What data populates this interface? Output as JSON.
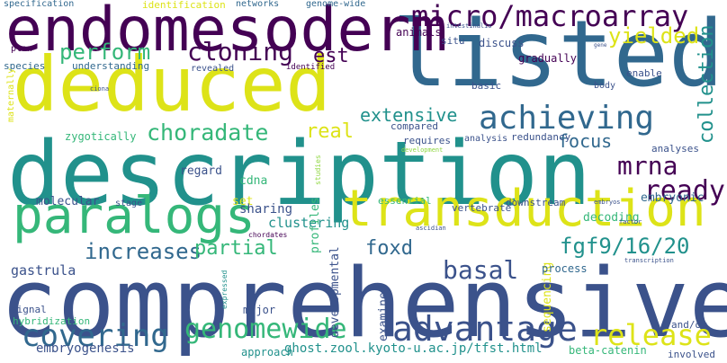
{
  "palette": {
    "dark_purple": "#440154",
    "indigo": "#3b528b",
    "blue": "#31688e",
    "teal": "#21918c",
    "green": "#35b779",
    "lime": "#90d743",
    "yellow": "#dde318"
  },
  "words": [
    {
      "text": "comprehensive",
      "color": "#3b528b"
    },
    {
      "text": "description",
      "color": "#21918c"
    },
    {
      "text": "listed",
      "color": "#31688e"
    },
    {
      "text": "deduced",
      "color": "#dde318"
    },
    {
      "text": "endomesoderm",
      "color": "#440154"
    },
    {
      "text": "transduction",
      "color": "#dde318"
    },
    {
      "text": "paralogs",
      "color": "#35b779"
    },
    {
      "text": "achieving",
      "color": "#31688e"
    },
    {
      "text": "micro/macroarray",
      "color": "#440154"
    },
    {
      "text": "advantage",
      "color": "#3b528b"
    },
    {
      "text": "release",
      "color": "#dde318"
    },
    {
      "text": "covering",
      "color": "#31688e"
    },
    {
      "text": "genomewide",
      "color": "#35b779"
    },
    {
      "text": "cloning",
      "color": "#440154"
    },
    {
      "text": "basal",
      "color": "#3b528b"
    },
    {
      "text": "increases",
      "color": "#31688e"
    },
    {
      "text": "fgf9/16/20",
      "color": "#21918c"
    },
    {
      "text": "choradate",
      "color": "#35b779"
    },
    {
      "text": "mrna",
      "color": "#440154"
    },
    {
      "text": "ready",
      "color": "#440154"
    },
    {
      "text": "extensive",
      "color": "#21918c"
    },
    {
      "text": "yielded",
      "color": "#dde318"
    },
    {
      "text": "perform",
      "color": "#35b779"
    },
    {
      "text": "collection",
      "color": "#21918c"
    },
    {
      "text": "partial",
      "color": "#35b779"
    },
    {
      "text": "foxd",
      "color": "#31688e"
    },
    {
      "text": "real",
      "color": "#dde318"
    },
    {
      "text": "focus",
      "color": "#31688e"
    },
    {
      "text": "est",
      "color": "#440154"
    },
    {
      "text": "gastrula",
      "color": "#3b528b"
    },
    {
      "text": "clustering",
      "color": "#21918c"
    },
    {
      "text": "sharing",
      "color": "#3b528b"
    },
    {
      "text": "embryogenesis",
      "color": "#3b528b"
    },
    {
      "text": "ghost.zool.kyoto-u.ac.jp/tfst.html",
      "color": "#21918c"
    },
    {
      "text": "beta-catenin",
      "color": "#35b779"
    },
    {
      "text": "developmental",
      "color": "#3b528b"
    },
    {
      "text": "examined",
      "color": "#3b528b"
    },
    {
      "text": "sequencing",
      "color": "#dde318"
    },
    {
      "text": "zygotically",
      "color": "#35b779"
    },
    {
      "text": "molecular",
      "color": "#3b528b"
    },
    {
      "text": "regard",
      "color": "#3b528b"
    },
    {
      "text": "cdna",
      "color": "#35b779"
    },
    {
      "text": "set",
      "color": "#dde318"
    },
    {
      "text": "profiles",
      "color": "#35b779"
    },
    {
      "text": "decoding",
      "color": "#35b779"
    },
    {
      "text": "embryonic",
      "color": "#31688e"
    },
    {
      "text": "process",
      "color": "#31688e"
    },
    {
      "text": "approach",
      "color": "#21918c"
    },
    {
      "text": "major",
      "color": "#3b528b"
    },
    {
      "text": "signal",
      "color": "#3b528b"
    },
    {
      "text": "hybridization",
      "color": "#35b779"
    },
    {
      "text": "and/or",
      "color": "#3b528b"
    },
    {
      "text": "involved",
      "color": "#3b528b"
    },
    {
      "text": "downstream",
      "color": "#3b528b"
    },
    {
      "text": "vertebrate",
      "color": "#3b528b"
    },
    {
      "text": "essential",
      "color": "#35b779"
    },
    {
      "text": "stage",
      "color": "#3b528b"
    },
    {
      "text": "redundancy",
      "color": "#3b528b"
    },
    {
      "text": "analyses",
      "color": "#3b528b"
    },
    {
      "text": "analysis",
      "color": "#3b528b"
    },
    {
      "text": "requires",
      "color": "#3b528b"
    },
    {
      "text": "compared",
      "color": "#3b528b"
    },
    {
      "text": "basic",
      "color": "#3b528b"
    },
    {
      "text": "body",
      "color": "#3b528b"
    },
    {
      "text": "enable",
      "color": "#3b528b"
    },
    {
      "text": "gradually",
      "color": "#440154"
    },
    {
      "text": "discuss",
      "color": "#3b528b"
    },
    {
      "text": "animals",
      "color": "#440154"
    },
    {
      "text": "situ",
      "color": "#3b528b"
    },
    {
      "text": "revealed",
      "color": "#3b528b"
    },
    {
      "text": "understanding",
      "color": "#31688e"
    },
    {
      "text": "species",
      "color": "#31688e"
    },
    {
      "text": "plan",
      "color": "#440154"
    },
    {
      "text": "maternally",
      "color": "#dde318"
    },
    {
      "text": "identified",
      "color": "#440154"
    },
    {
      "text": "specification",
      "color": "#31688e"
    },
    {
      "text": "identification",
      "color": "#dde318"
    },
    {
      "text": "networks",
      "color": "#31688e"
    },
    {
      "text": "genome-wide",
      "color": "#31688e"
    },
    {
      "text": "intestinalis",
      "color": "#3b528b"
    },
    {
      "text": "gene",
      "color": "#3b528b"
    },
    {
      "text": "ciona",
      "color": "#3b528b"
    },
    {
      "text": "embryos",
      "color": "#3b528b"
    },
    {
      "text": "factor",
      "color": "#3b528b"
    },
    {
      "text": "development",
      "color": "#90d743"
    },
    {
      "text": "ascidian",
      "color": "#3b528b"
    },
    {
      "text": "transcription",
      "color": "#3b528b"
    },
    {
      "text": "expressed",
      "color": "#21918c"
    },
    {
      "text": "chordates",
      "color": "#440154"
    },
    {
      "text": "studies",
      "color": "#90d743"
    }
  ]
}
